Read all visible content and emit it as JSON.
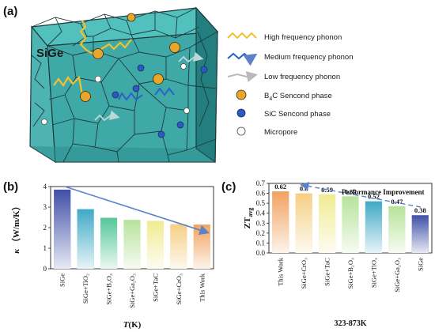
{
  "figure": {
    "panel_a_label": "(a)",
    "panel_b_label": "(b)",
    "panel_c_label": "(c)"
  },
  "cube": {
    "material_label": "SiGe",
    "colors": {
      "front": "#3fa9a8",
      "top": "#52c0bd",
      "side": "#237e7f",
      "edge": "#1f3a3c"
    }
  },
  "legend": [
    {
      "label": "High frequency phonon",
      "symbol": "wave-icon",
      "color": "#f2c12e"
    },
    {
      "label": "Medium frequency phonon",
      "symbol": "wave-icon",
      "color": "#2c63c7"
    },
    {
      "label": "Low frequency phonon",
      "symbol": "arrow-icon",
      "color": "#b9b9b9"
    },
    {
      "label_prefix": "B",
      "label_sub": "4",
      "label_suffix": "C  Sencond phase",
      "symbol": "circle-icon",
      "color": "#e8a62b"
    },
    {
      "label": "SiC  Sencond phase",
      "symbol": "circle-icon",
      "color": "#2e59c4"
    },
    {
      "label": "Micropore",
      "symbol": "circle-icon",
      "color": "#ffffff"
    }
  ],
  "chart_data": [
    {
      "type": "bar",
      "panel": "b",
      "ylabel_main": "κ",
      "ylabel_unit": "（W/m/K）",
      "xlabel_main": "T",
      "xlabel_unit": "(K)",
      "ylim": [
        0,
        4
      ],
      "yticks": [
        "0",
        "1",
        "2",
        "3",
        "4"
      ],
      "categories": [
        "SiGe",
        "SiGe+TiO₂",
        "SiGe+B₂O₃",
        "SiGe+Ga₂O₃",
        "SiGe+TaC",
        "SiGe+CrO₃",
        "This Work"
      ],
      "values": [
        3.85,
        2.9,
        2.48,
        2.38,
        2.33,
        2.17,
        2.15
      ],
      "colors": [
        "#3f4fa6",
        "#3fa9c6",
        "#55c79a",
        "#b7e39a",
        "#f0ec93",
        "#f6cf85",
        "#f2a25f"
      ],
      "trend": "decreasing arrow"
    },
    {
      "type": "bar",
      "panel": "c",
      "title": "Performance Improvement",
      "ylabel_main": "ZT",
      "ylabel_sub": "avg",
      "xlabel": "323-873K",
      "ylim": [
        0,
        0.7
      ],
      "yticks": [
        "0.0",
        "0.1",
        "0.2",
        "0.3",
        "0.4",
        "0.5",
        "0.6",
        "0.7"
      ],
      "categories": [
        "This Work",
        "SiGe+CrO₃",
        "SiGe+TaC",
        "SiGe+B₂O₃",
        "SiGe+TiO₂",
        "SiGe+Ga₂O₃",
        "SiGe"
      ],
      "values": [
        0.62,
        0.6,
        0.59,
        0.57,
        0.52,
        0.47,
        0.38
      ],
      "value_labels": [
        "0.62",
        "0.6",
        "0.59",
        "0.57",
        "0.52",
        "0.47",
        "0.38"
      ],
      "colors": [
        "#f2a25f",
        "#f6cf85",
        "#f0ec93",
        "#b7e39a",
        "#3fa9c6",
        "#b7e39a",
        "#3f4fa6"
      ],
      "trend": "dashed arrow pointing left"
    }
  ]
}
